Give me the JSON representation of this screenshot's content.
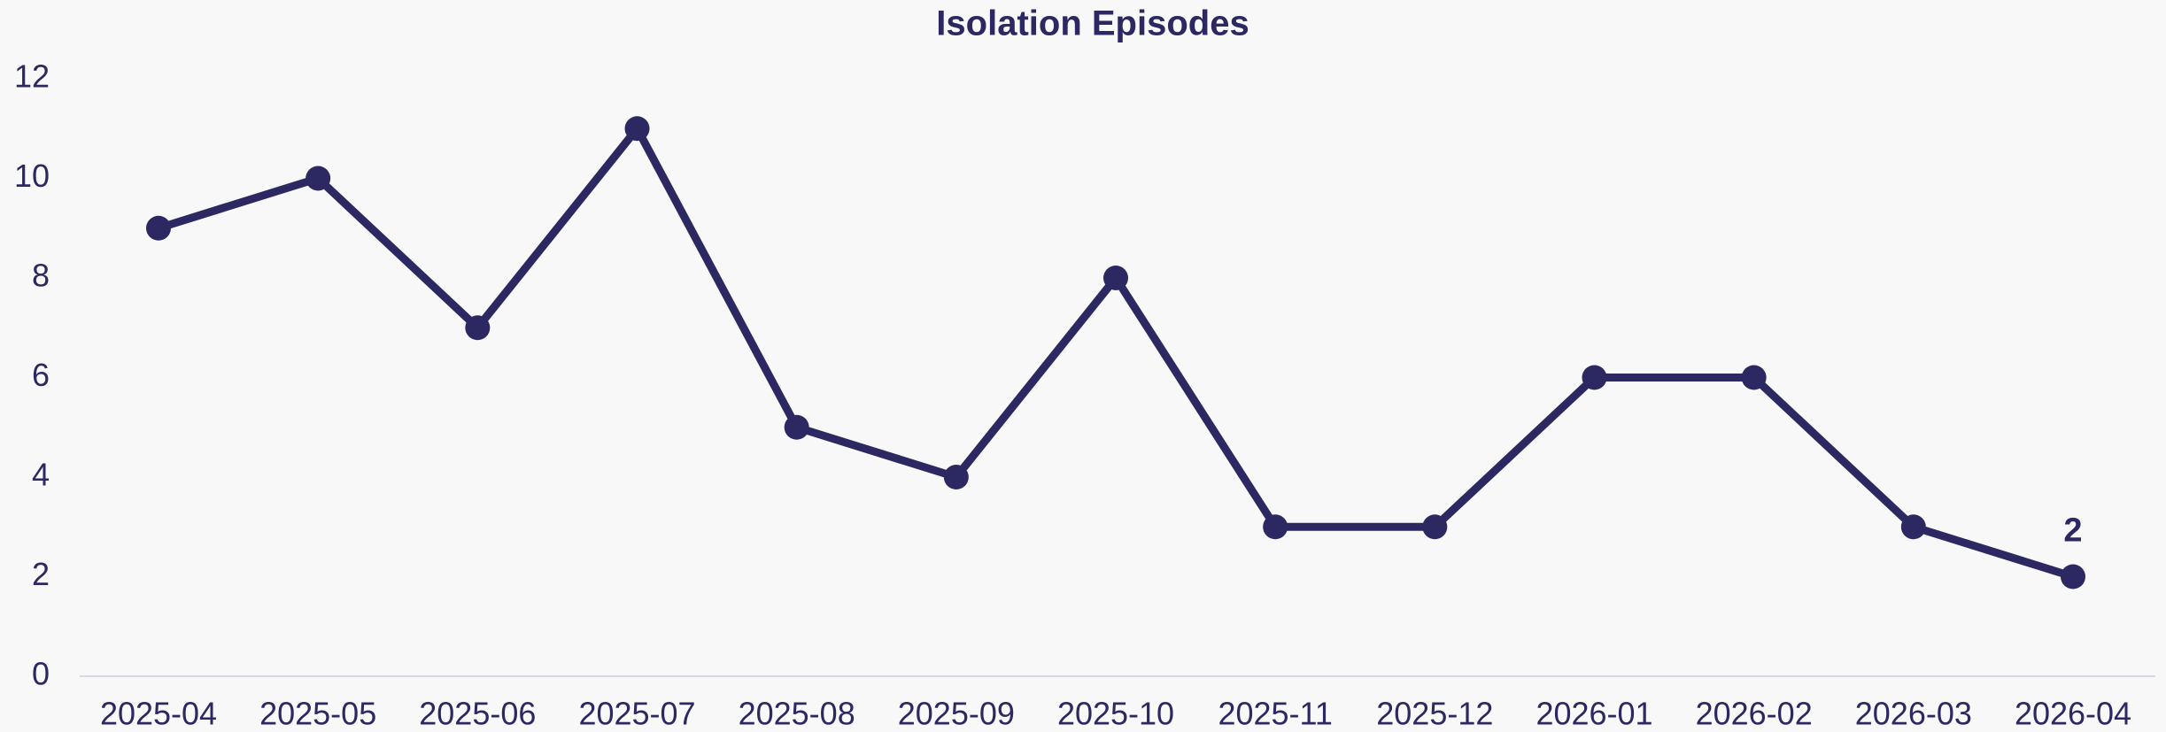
{
  "chart_data": {
    "type": "line",
    "title": "Isolation Episodes",
    "categories": [
      "2025-04",
      "2025-05",
      "2025-06",
      "2025-07",
      "2025-08",
      "2025-09",
      "2025-10",
      "2025-11",
      "2025-12",
      "2026-01",
      "2026-02",
      "2026-03",
      "2026-04"
    ],
    "values": [
      9,
      10,
      7,
      11,
      5,
      4,
      8,
      3,
      3,
      6,
      6,
      3,
      2
    ],
    "color": "#2b2862",
    "ylim": [
      0,
      12
    ],
    "yticks": [
      0,
      2,
      4,
      6,
      8,
      10,
      12
    ],
    "grid": false,
    "label_last_point": true
  }
}
